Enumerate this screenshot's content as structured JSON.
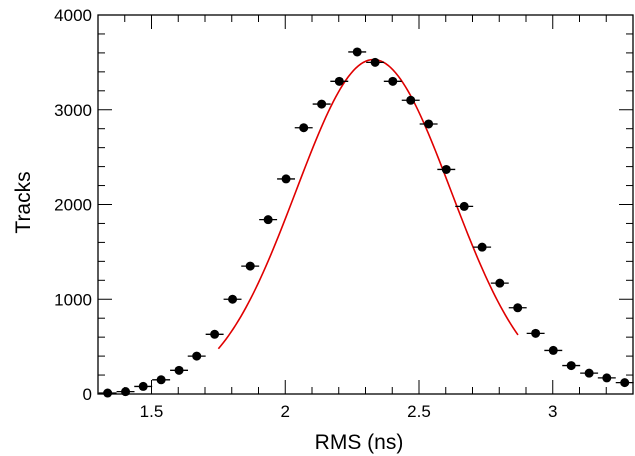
{
  "chart_data": {
    "type": "scatter",
    "xlabel": "RMS (ns)",
    "ylabel": "Tracks",
    "xlim": [
      1.3,
      3.3
    ],
    "ylim": [
      0,
      4000
    ],
    "x_ticks": [
      1.5,
      2,
      2.5,
      3
    ],
    "x_tick_labels": [
      "1.5",
      "2",
      "2.5",
      "3"
    ],
    "y_ticks": [
      0,
      1000,
      2000,
      3000,
      4000
    ],
    "y_tick_labels": [
      "0",
      "1000",
      "2000",
      "3000",
      "4000"
    ],
    "bin_width": 0.067,
    "grid": false,
    "series": [
      {
        "kind": "points",
        "x": [
          1.336,
          1.403,
          1.469,
          1.536,
          1.603,
          1.669,
          1.736,
          1.803,
          1.869,
          1.936,
          2.003,
          2.069,
          2.136,
          2.202,
          2.269,
          2.336,
          2.402,
          2.469,
          2.536,
          2.602,
          2.669,
          2.736,
          2.802,
          2.869,
          2.936,
          3.002,
          3.069,
          3.136,
          3.202,
          3.269
        ],
        "y": [
          10,
          25,
          80,
          150,
          250,
          400,
          630,
          1000,
          1350,
          1840,
          2270,
          2810,
          3060,
          3300,
          3610,
          3500,
          3300,
          3100,
          2850,
          2370,
          1980,
          1550,
          1170,
          910,
          640,
          460,
          300,
          220,
          170,
          120
        ],
        "color": "#000000"
      },
      {
        "kind": "fit",
        "x_range": [
          1.75,
          2.87
        ],
        "mean": 2.33,
        "sigma": 0.29,
        "amplitude": 3530,
        "color": "#e00000"
      }
    ]
  }
}
